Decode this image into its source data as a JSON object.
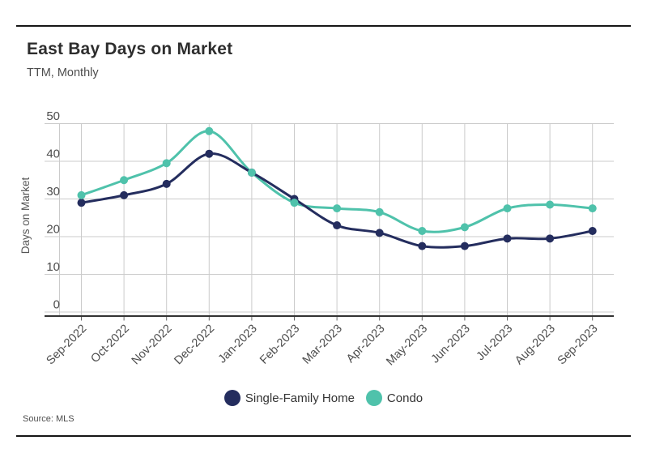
{
  "header": {
    "title": "East Bay Days on Market",
    "subtitle": "TTM, Monthly"
  },
  "footer": {
    "source_label": "Source: MLS"
  },
  "chart_data": {
    "type": "line",
    "title": "East Bay Days on Market",
    "subtitle": "TTM, Monthly",
    "categories": [
      "Sep-2022",
      "Oct-2022",
      "Nov-2022",
      "Dec-2022",
      "Jan-2023",
      "Feb-2023",
      "Mar-2023",
      "Apr-2023",
      "May-2023",
      "Jun-2023",
      "Jul-2023",
      "Aug-2023",
      "Sep-2023"
    ],
    "series": [
      {
        "name": "Single-Family Home",
        "color": "#242D5E",
        "values": [
          29,
          31,
          34,
          42,
          37,
          30,
          23,
          21,
          17.5,
          17.5,
          19.5,
          19.5,
          21.5
        ]
      },
      {
        "name": "Condo",
        "color": "#4FC2AB",
        "values": [
          31,
          35,
          39.5,
          48,
          37,
          29,
          27.5,
          26.5,
          21.5,
          22.5,
          27.5,
          28.5,
          27.5
        ]
      }
    ],
    "xlabel": "",
    "ylabel": "Days on Market",
    "ylim": [
      0,
      50
    ],
    "yticks": [
      0,
      10,
      20,
      30,
      40,
      50
    ],
    "grid": true,
    "legend_position": "bottom",
    "marker": "circle",
    "colors": {
      "grid": "#cbcbcb",
      "axis": "#333333",
      "tick_mark": "#666666"
    }
  }
}
